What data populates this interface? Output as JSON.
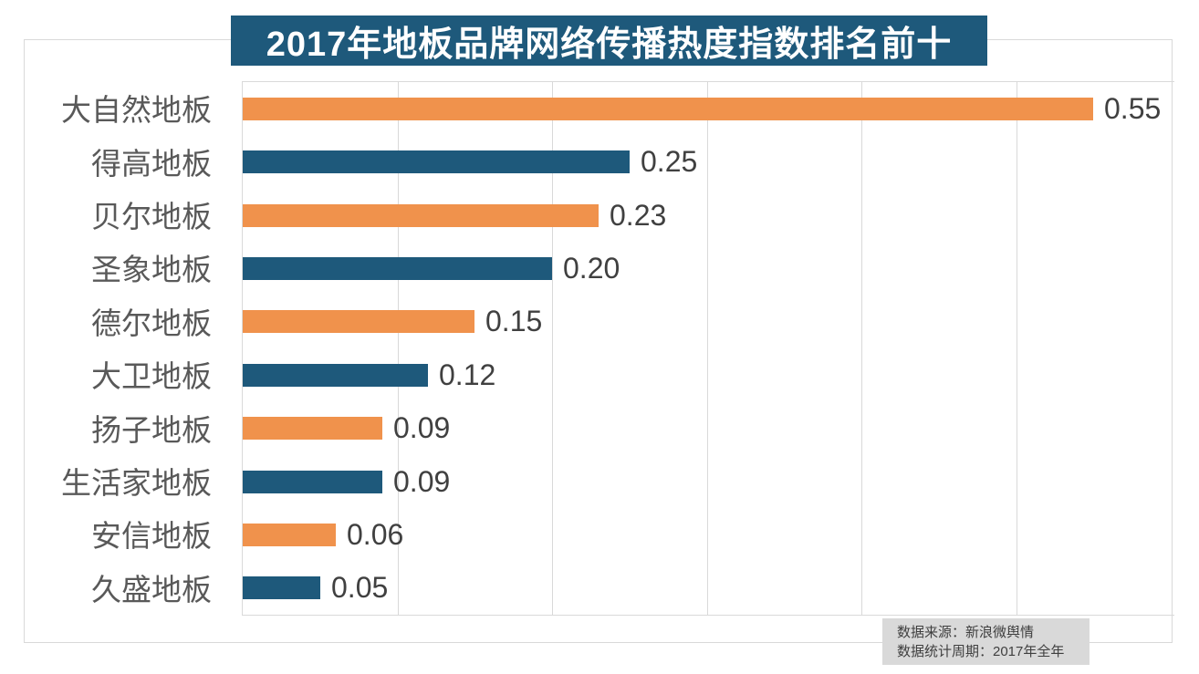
{
  "title": {
    "text": "2017年地板品牌网络传播热度指数排名前十",
    "bg_color": "#1e597b",
    "text_color": "#ffffff"
  },
  "footer": {
    "source_line": "数据来源：新浪微舆情",
    "period_line": "数据统计周期：2017年全年",
    "bg_color": "#d9d9d9",
    "text_color": "#3f3f3f"
  },
  "colors": {
    "orange": "#f0924c",
    "teal": "#1e597b",
    "grid": "#d9d9d9",
    "category_label": "#595959",
    "value_label": "#404040",
    "frame_border": "#d9d9d9"
  },
  "chart_data": {
    "type": "bar",
    "orientation": "horizontal",
    "title": "2017年地板品牌网络传播热度指数排名前十",
    "categories": [
      "大自然地板",
      "得高地板",
      "贝尔地板",
      "圣象地板",
      "德尔地板",
      "大卫地板",
      "扬子地板",
      "生活家地板",
      "安信地板",
      "久盛地板"
    ],
    "values": [
      0.55,
      0.25,
      0.23,
      0.2,
      0.15,
      0.12,
      0.09,
      0.09,
      0.06,
      0.05
    ],
    "value_labels": [
      "0.55",
      "0.25",
      "0.23",
      "0.20",
      "0.15",
      "0.12",
      "0.09",
      "0.09",
      "0.06",
      "0.05"
    ],
    "bar_colors": [
      "#f0924c",
      "#1e597b",
      "#f0924c",
      "#1e597b",
      "#f0924c",
      "#1e597b",
      "#f0924c",
      "#1e597b",
      "#f0924c",
      "#1e597b"
    ],
    "xlim": [
      0,
      0.6
    ],
    "gridline_values": [
      0.1,
      0.2,
      0.3,
      0.4,
      0.5
    ],
    "grid": "vertical-only",
    "legend": false,
    "data_labels": true,
    "axis_tick_labels": false
  }
}
